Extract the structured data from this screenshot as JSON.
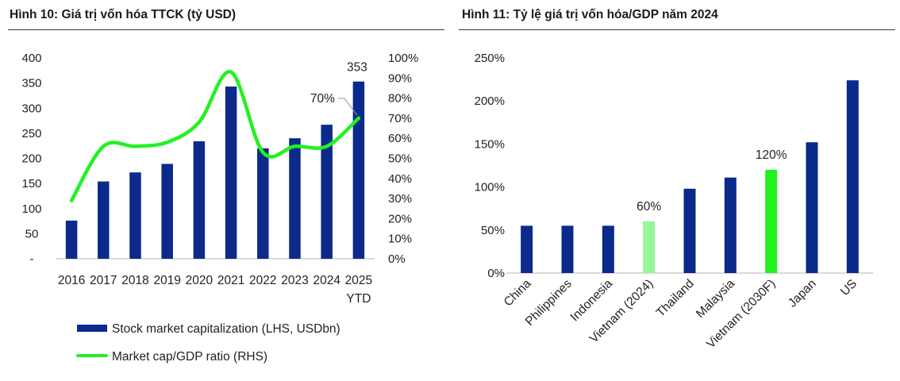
{
  "colors": {
    "bar": "#0b2a8c",
    "line": "#22f122",
    "bar_highlight_light": "#99f599",
    "bar_highlight": "#22f122",
    "axis": "#b5b5b5",
    "rule": "#3a3a3a"
  },
  "chart_data": [
    {
      "type": "bar+line",
      "title": "Hình 10: Giá trị vốn hóa TTCK (tỷ USD)",
      "categories": [
        "2016",
        "2017",
        "2018",
        "2019",
        "2020",
        "2021",
        "2022",
        "2023",
        "2024",
        "2025"
      ],
      "category_sublabels": [
        "",
        "",
        "",
        "",
        "",
        "",
        "",
        "",
        "",
        "YTD"
      ],
      "y_left_ticks": [
        "400",
        "350",
        "300",
        "250",
        "200",
        "150",
        "100",
        "50",
        "-"
      ],
      "y_left_range": [
        0,
        400
      ],
      "y_right_ticks": [
        "100%",
        "90%",
        "80%",
        "70%",
        "60%",
        "50%",
        "40%",
        "30%",
        "20%",
        "10%",
        "0%"
      ],
      "y_right_range": [
        0,
        100
      ],
      "series": [
        {
          "name": "Stock market capitalization (LHS, USDbn)",
          "kind": "bar",
          "axis": "left",
          "values": [
            76,
            154,
            172,
            189,
            234,
            343,
            220,
            240,
            267,
            353
          ]
        },
        {
          "name": "Market cap/GDP ratio (RHS)",
          "kind": "line",
          "axis": "right",
          "values": [
            29,
            56,
            56,
            58,
            68,
            93,
            53,
            56,
            56,
            70
          ]
        }
      ],
      "data_labels": {
        "bar_last": "353",
        "line_last": "70%"
      },
      "legend_position": "bottom"
    },
    {
      "type": "bar",
      "title": "Hình 11: Tỷ lệ giá trị vốn hóa/GDP năm 2024",
      "categories": [
        "China",
        "Philippines",
        "Indonesia",
        "Vietnam (2024)",
        "Thailand",
        "Malaysia",
        "Vietnam (2030F)",
        "Japan",
        "US"
      ],
      "values": [
        55,
        55,
        55,
        60,
        98,
        111,
        120,
        152,
        224
      ],
      "y_ticks": [
        "250%",
        "200%",
        "150%",
        "100%",
        "50%",
        "0%"
      ],
      "y_range": [
        0,
        250
      ],
      "highlight": {
        "Vietnam (2024)": "light",
        "Vietnam (2030F)": "strong"
      },
      "data_labels": {
        "Vietnam (2024)": "60%",
        "Vietnam (2030F)": "120%"
      }
    }
  ]
}
